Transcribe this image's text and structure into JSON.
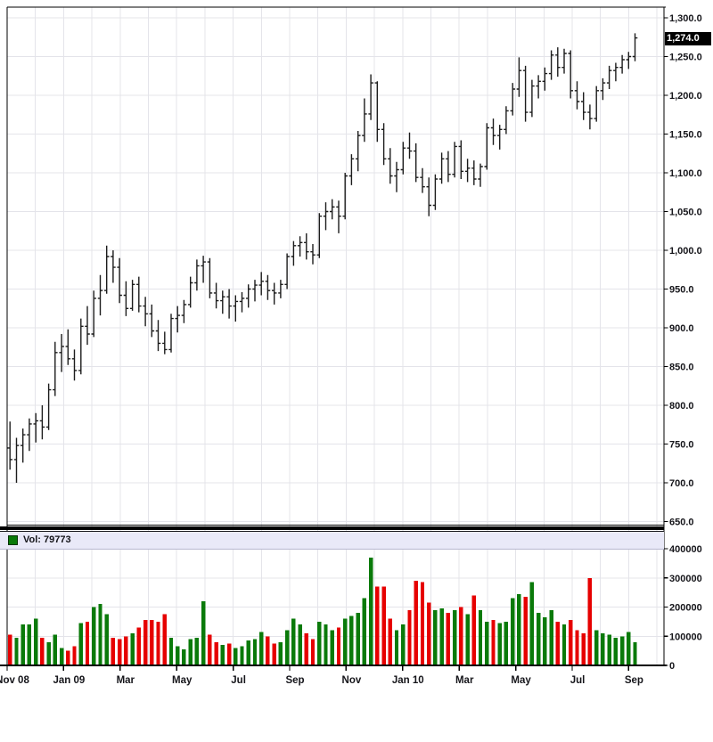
{
  "colors": {
    "up_volume": "#0a7a0a",
    "down_volume": "#e60000",
    "ohlc_bar": "#1c1c1c",
    "grid": "#e4e4ea",
    "axis": "#000000",
    "background": "#ffffff",
    "vol_header_bg": "#e9e9f8",
    "last_price_bg": "#000000",
    "last_price_fg": "#ffffff",
    "label_color": "#15151a"
  },
  "volume_header": {
    "label": "Vol: 79773",
    "swatch_icon": "green-square-icon"
  },
  "price_axis": {
    "last_price": "1,274.0",
    "ticks": [
      {
        "value": 1300,
        "label": "1,300.0"
      },
      {
        "value": 1250,
        "label": "1,250.0"
      },
      {
        "value": 1200,
        "label": "1,200.0"
      },
      {
        "value": 1150,
        "label": "1,150.0"
      },
      {
        "value": 1100,
        "label": "1,100.0"
      },
      {
        "value": 1050,
        "label": "1,050.0"
      },
      {
        "value": 1000,
        "label": "1,000.0"
      },
      {
        "value": 950,
        "label": "950.0"
      },
      {
        "value": 900,
        "label": "900.0"
      },
      {
        "value": 850,
        "label": "850.0"
      },
      {
        "value": 800,
        "label": "800.0"
      },
      {
        "value": 750,
        "label": "750.0"
      },
      {
        "value": 700,
        "label": "700.0"
      },
      {
        "value": 650,
        "label": "650.0"
      }
    ]
  },
  "volume_axis": {
    "ticks": [
      {
        "value": 400000,
        "label": "400000"
      },
      {
        "value": 300000,
        "label": "300000"
      },
      {
        "value": 200000,
        "label": "200000"
      },
      {
        "value": 100000,
        "label": "100000"
      },
      {
        "value": 0,
        "label": "0"
      }
    ]
  },
  "time_axis": {
    "ticks": [
      {
        "month": 0,
        "label": "Nov 08"
      },
      {
        "month": 2,
        "label": "Jan 09"
      },
      {
        "month": 4,
        "label": "Mar"
      },
      {
        "month": 6,
        "label": "May"
      },
      {
        "month": 8,
        "label": "Jul"
      },
      {
        "month": 10,
        "label": "Sep"
      },
      {
        "month": 12,
        "label": "Nov"
      },
      {
        "month": 14,
        "label": "Jan 10"
      },
      {
        "month": 16,
        "label": "Mar"
      },
      {
        "month": 18,
        "label": "May"
      },
      {
        "month": 20,
        "label": "Jul"
      },
      {
        "month": 22,
        "label": "Sep"
      }
    ]
  },
  "chart_data": {
    "type": "ohlc",
    "interval": "weekly",
    "title": "",
    "price_ylim": [
      650,
      1300
    ],
    "volume_ylim": [
      0,
      400000
    ],
    "grid": true,
    "legend_position": "top-left-of-volume-pane",
    "last_close": 1274.0,
    "last_volume": 79773,
    "months_span": [
      "Nov 08",
      "Sep 10"
    ],
    "bars_format": [
      "open",
      "high",
      "low",
      "close",
      "volume"
    ],
    "bars": [
      [
        745,
        779,
        717,
        730,
        105000
      ],
      [
        730,
        758,
        700,
        748,
        95000
      ],
      [
        748,
        770,
        726,
        762,
        140000
      ],
      [
        762,
        783,
        741,
        776,
        140000
      ],
      [
        776,
        790,
        752,
        780,
        160000
      ],
      [
        780,
        800,
        756,
        772,
        95000
      ],
      [
        772,
        828,
        768,
        820,
        80000
      ],
      [
        820,
        882,
        812,
        868,
        105000
      ],
      [
        868,
        892,
        843,
        876,
        60000
      ],
      [
        876,
        898,
        852,
        860,
        50000
      ],
      [
        860,
        872,
        832,
        845,
        65000
      ],
      [
        845,
        912,
        840,
        902,
        145000
      ],
      [
        902,
        928,
        878,
        892,
        150000
      ],
      [
        892,
        948,
        888,
        938,
        200000
      ],
      [
        938,
        968,
        916,
        948,
        210000
      ],
      [
        948,
        1006,
        944,
        992,
        175000
      ],
      [
        992,
        1000,
        958,
        978,
        95000
      ],
      [
        978,
        990,
        932,
        942,
        90000
      ],
      [
        942,
        960,
        915,
        925,
        100000
      ],
      [
        925,
        962,
        922,
        956,
        110000
      ],
      [
        956,
        966,
        920,
        928,
        130000
      ],
      [
        928,
        940,
        902,
        918,
        155000
      ],
      [
        918,
        930,
        888,
        896,
        155000
      ],
      [
        896,
        910,
        870,
        880,
        150000
      ],
      [
        880,
        895,
        866,
        872,
        175000
      ],
      [
        872,
        918,
        868,
        912,
        95000
      ],
      [
        912,
        928,
        894,
        916,
        65000
      ],
      [
        916,
        936,
        906,
        930,
        55000
      ],
      [
        930,
        966,
        926,
        958,
        90000
      ],
      [
        958,
        988,
        948,
        980,
        95000
      ],
      [
        980,
        993,
        958,
        985,
        220000
      ],
      [
        985,
        990,
        938,
        945,
        105000
      ],
      [
        945,
        958,
        925,
        935,
        80000
      ],
      [
        935,
        948,
        918,
        940,
        70000
      ],
      [
        940,
        950,
        912,
        928,
        75000
      ],
      [
        928,
        942,
        908,
        934,
        60000
      ],
      [
        934,
        946,
        920,
        938,
        65000
      ],
      [
        938,
        956,
        926,
        950,
        85000
      ],
      [
        950,
        962,
        934,
        955,
        90000
      ],
      [
        955,
        972,
        942,
        960,
        115000
      ],
      [
        960,
        968,
        936,
        948,
        100000
      ],
      [
        948,
        958,
        930,
        945,
        75000
      ],
      [
        945,
        962,
        938,
        956,
        80000
      ],
      [
        956,
        996,
        950,
        992,
        120000
      ],
      [
        992,
        1012,
        980,
        1006,
        160000
      ],
      [
        1006,
        1018,
        992,
        1010,
        140000
      ],
      [
        1010,
        1022,
        988,
        998,
        110000
      ],
      [
        998,
        1008,
        982,
        994,
        90000
      ],
      [
        994,
        1048,
        990,
        1044,
        150000
      ],
      [
        1044,
        1062,
        1026,
        1050,
        140000
      ],
      [
        1050,
        1066,
        1040,
        1056,
        120000
      ],
      [
        1056,
        1064,
        1022,
        1044,
        130000
      ],
      [
        1044,
        1100,
        1040,
        1096,
        160000
      ],
      [
        1096,
        1124,
        1084,
        1118,
        170000
      ],
      [
        1118,
        1154,
        1102,
        1148,
        180000
      ],
      [
        1148,
        1196,
        1140,
        1176,
        230000
      ],
      [
        1176,
        1227,
        1168,
        1216,
        370000
      ],
      [
        1216,
        1218,
        1140,
        1156,
        270000
      ],
      [
        1156,
        1164,
        1110,
        1118,
        270000
      ],
      [
        1118,
        1132,
        1086,
        1096,
        160000
      ],
      [
        1096,
        1114,
        1075,
        1104,
        120000
      ],
      [
        1104,
        1140,
        1098,
        1132,
        140000
      ],
      [
        1132,
        1152,
        1118,
        1128,
        190000
      ],
      [
        1128,
        1138,
        1088,
        1094,
        290000
      ],
      [
        1094,
        1106,
        1074,
        1082,
        285000
      ],
      [
        1082,
        1094,
        1044,
        1058,
        215000
      ],
      [
        1058,
        1098,
        1052,
        1092,
        190000
      ],
      [
        1092,
        1126,
        1086,
        1118,
        195000
      ],
      [
        1118,
        1128,
        1088,
        1098,
        180000
      ],
      [
        1098,
        1140,
        1094,
        1134,
        190000
      ],
      [
        1134,
        1142,
        1092,
        1102,
        200000
      ],
      [
        1102,
        1118,
        1088,
        1106,
        175000
      ],
      [
        1106,
        1116,
        1084,
        1092,
        240000
      ],
      [
        1092,
        1112,
        1082,
        1108,
        190000
      ],
      [
        1108,
        1164,
        1104,
        1158,
        150000
      ],
      [
        1158,
        1170,
        1136,
        1148,
        155000
      ],
      [
        1148,
        1162,
        1130,
        1156,
        145000
      ],
      [
        1156,
        1186,
        1150,
        1180,
        150000
      ],
      [
        1180,
        1216,
        1174,
        1208,
        230000
      ],
      [
        1208,
        1249,
        1198,
        1232,
        245000
      ],
      [
        1232,
        1238,
        1166,
        1178,
        235000
      ],
      [
        1178,
        1220,
        1172,
        1212,
        285000
      ],
      [
        1212,
        1226,
        1196,
        1218,
        180000
      ],
      [
        1218,
        1236,
        1206,
        1228,
        165000
      ],
      [
        1228,
        1258,
        1220,
        1252,
        190000
      ],
      [
        1252,
        1262,
        1224,
        1236,
        150000
      ],
      [
        1236,
        1260,
        1228,
        1254,
        140000
      ],
      [
        1254,
        1258,
        1196,
        1206,
        155000
      ],
      [
        1206,
        1218,
        1182,
        1192,
        120000
      ],
      [
        1192,
        1204,
        1168,
        1178,
        110000
      ],
      [
        1178,
        1188,
        1156,
        1170,
        300000
      ],
      [
        1170,
        1212,
        1166,
        1206,
        120000
      ],
      [
        1206,
        1222,
        1194,
        1216,
        110000
      ],
      [
        1216,
        1238,
        1208,
        1232,
        105000
      ],
      [
        1232,
        1242,
        1218,
        1236,
        95000
      ],
      [
        1236,
        1252,
        1228,
        1246,
        100000
      ],
      [
        1246,
        1256,
        1234,
        1250,
        115000
      ],
      [
        1250,
        1280,
        1244,
        1274,
        79773
      ]
    ]
  }
}
